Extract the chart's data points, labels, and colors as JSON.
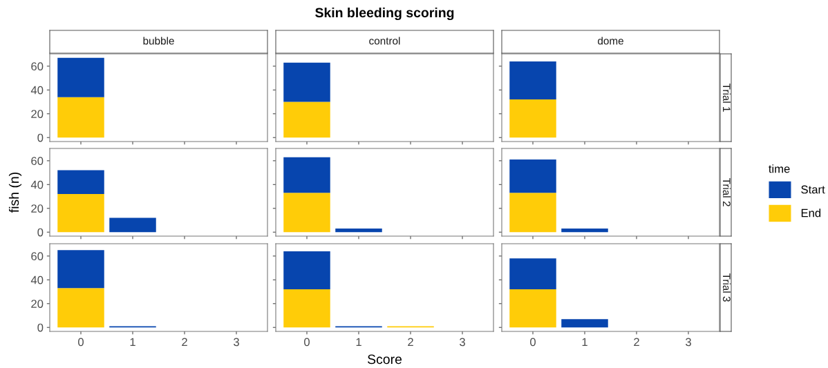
{
  "chart_data": [
    {
      "type": "bar",
      "subtitle": "bubble",
      "categories": [
        "0",
        "1",
        "2",
        "3"
      ],
      "stacked": true,
      "ylim": [
        -3.35,
        70.35
      ],
      "yticks": [
        0,
        20,
        40,
        60
      ],
      "tick_labels": "y",
      "grid": false,
      "legend": false,
      "series": [
        {
          "color": "#ffcc08",
          "values": [
            34,
            null,
            null,
            null
          ]
        },
        {
          "color": "#0745ae",
          "values": [
            33,
            null,
            null,
            null
          ]
        }
      ]
    },
    {
      "type": "bar",
      "title": "Skin bleeding scoring",
      "subtitle": "control",
      "categories": [
        "0",
        "1",
        "2",
        "3"
      ],
      "stacked": true,
      "ylim": [
        -3.35,
        70.35
      ],
      "yticks": [
        0,
        20,
        40,
        60
      ],
      "tick_labels": false,
      "grid": false,
      "legend": false,
      "series": [
        {
          "color": "#ffcc08",
          "values": [
            30,
            null,
            null,
            null
          ]
        },
        {
          "color": "#0745ae",
          "values": [
            33,
            null,
            null,
            null
          ]
        }
      ]
    },
    {
      "type": "bar",
      "subtitle": "dome",
      "annotations": [
        "Trial 1"
      ],
      "categories": [
        "0",
        "1",
        "2",
        "3"
      ],
      "stacked": true,
      "ylim": [
        -3.35,
        70.35
      ],
      "yticks": [
        0,
        20,
        40,
        60
      ],
      "tick_labels": false,
      "grid": false,
      "legend": false,
      "series": [
        {
          "color": "#ffcc08",
          "values": [
            32,
            null,
            null,
            null
          ]
        },
        {
          "color": "#0745ae",
          "values": [
            32,
            null,
            null,
            null
          ]
        }
      ]
    },
    {
      "type": "bar",
      "ylabel": "fish (n)",
      "categories": [
        "0",
        "1",
        "2",
        "3"
      ],
      "stacked": true,
      "ylim": [
        -3.35,
        70.35
      ],
      "yticks": [
        0,
        20,
        40,
        60
      ],
      "tick_labels": "y",
      "grid": false,
      "legend": false,
      "series": [
        {
          "color": "#ffcc08",
          "values": [
            32,
            null,
            null,
            null
          ]
        },
        {
          "color": "#0745ae",
          "values": [
            20,
            12,
            null,
            null
          ]
        }
      ]
    },
    {
      "type": "bar",
      "categories": [
        "0",
        "1",
        "2",
        "3"
      ],
      "stacked": true,
      "ylim": [
        -3.35,
        70.35
      ],
      "yticks": [
        0,
        20,
        40,
        60
      ],
      "tick_labels": false,
      "grid": false,
      "legend": false,
      "series": [
        {
          "color": "#ffcc08",
          "values": [
            33,
            null,
            null,
            null
          ]
        },
        {
          "color": "#0745ae",
          "values": [
            30,
            3,
            null,
            null
          ]
        }
      ]
    },
    {
      "type": "bar",
      "annotations": [
        "Trial 2"
      ],
      "legend_title": "time",
      "categories": [
        "0",
        "1",
        "2",
        "3"
      ],
      "stacked": true,
      "ylim": [
        -3.35,
        70.35
      ],
      "yticks": [
        0,
        20,
        40,
        60
      ],
      "tick_labels": false,
      "grid": false,
      "legend": "right",
      "series": [
        {
          "name": "End",
          "color": "#ffcc08",
          "values": [
            33,
            null,
            null,
            null
          ]
        },
        {
          "name": "Start",
          "color": "#0745ae",
          "values": [
            28,
            3,
            null,
            null
          ]
        }
      ]
    },
    {
      "type": "bar",
      "categories": [
        "0",
        "1",
        "2",
        "3"
      ],
      "stacked": true,
      "ylim": [
        -3.35,
        70.35
      ],
      "yticks": [
        0,
        20,
        40,
        60
      ],
      "grid": false,
      "legend": false,
      "series": [
        {
          "color": "#ffcc08",
          "values": [
            33,
            null,
            null,
            null
          ]
        },
        {
          "color": "#0745ae",
          "values": [
            32,
            1,
            null,
            null
          ]
        }
      ]
    },
    {
      "type": "bar",
      "xlabel": "Score",
      "categories": [
        "0",
        "1",
        "2",
        "3"
      ],
      "stacked": true,
      "ylim": [
        -3.35,
        70.35
      ],
      "yticks": [
        0,
        20,
        40,
        60
      ],
      "tick_labels": "x",
      "grid": false,
      "legend": false,
      "series": [
        {
          "color": "#ffcc08",
          "values": [
            32,
            null,
            1,
            null
          ]
        },
        {
          "color": "#0745ae",
          "values": [
            32,
            1,
            null,
            null
          ]
        }
      ]
    },
    {
      "type": "bar",
      "annotations": [
        "Trial 3"
      ],
      "categories": [
        "0",
        "1",
        "2",
        "3"
      ],
      "stacked": true,
      "ylim": [
        -3.35,
        70.35
      ],
      "yticks": [
        0,
        20,
        40,
        60
      ],
      "tick_labels": "x",
      "grid": false,
      "legend": false,
      "series": [
        {
          "color": "#ffcc08",
          "values": [
            32,
            null,
            null,
            null
          ]
        },
        {
          "color": "#0745ae",
          "values": [
            26,
            7,
            null,
            null
          ]
        }
      ]
    }
  ]
}
